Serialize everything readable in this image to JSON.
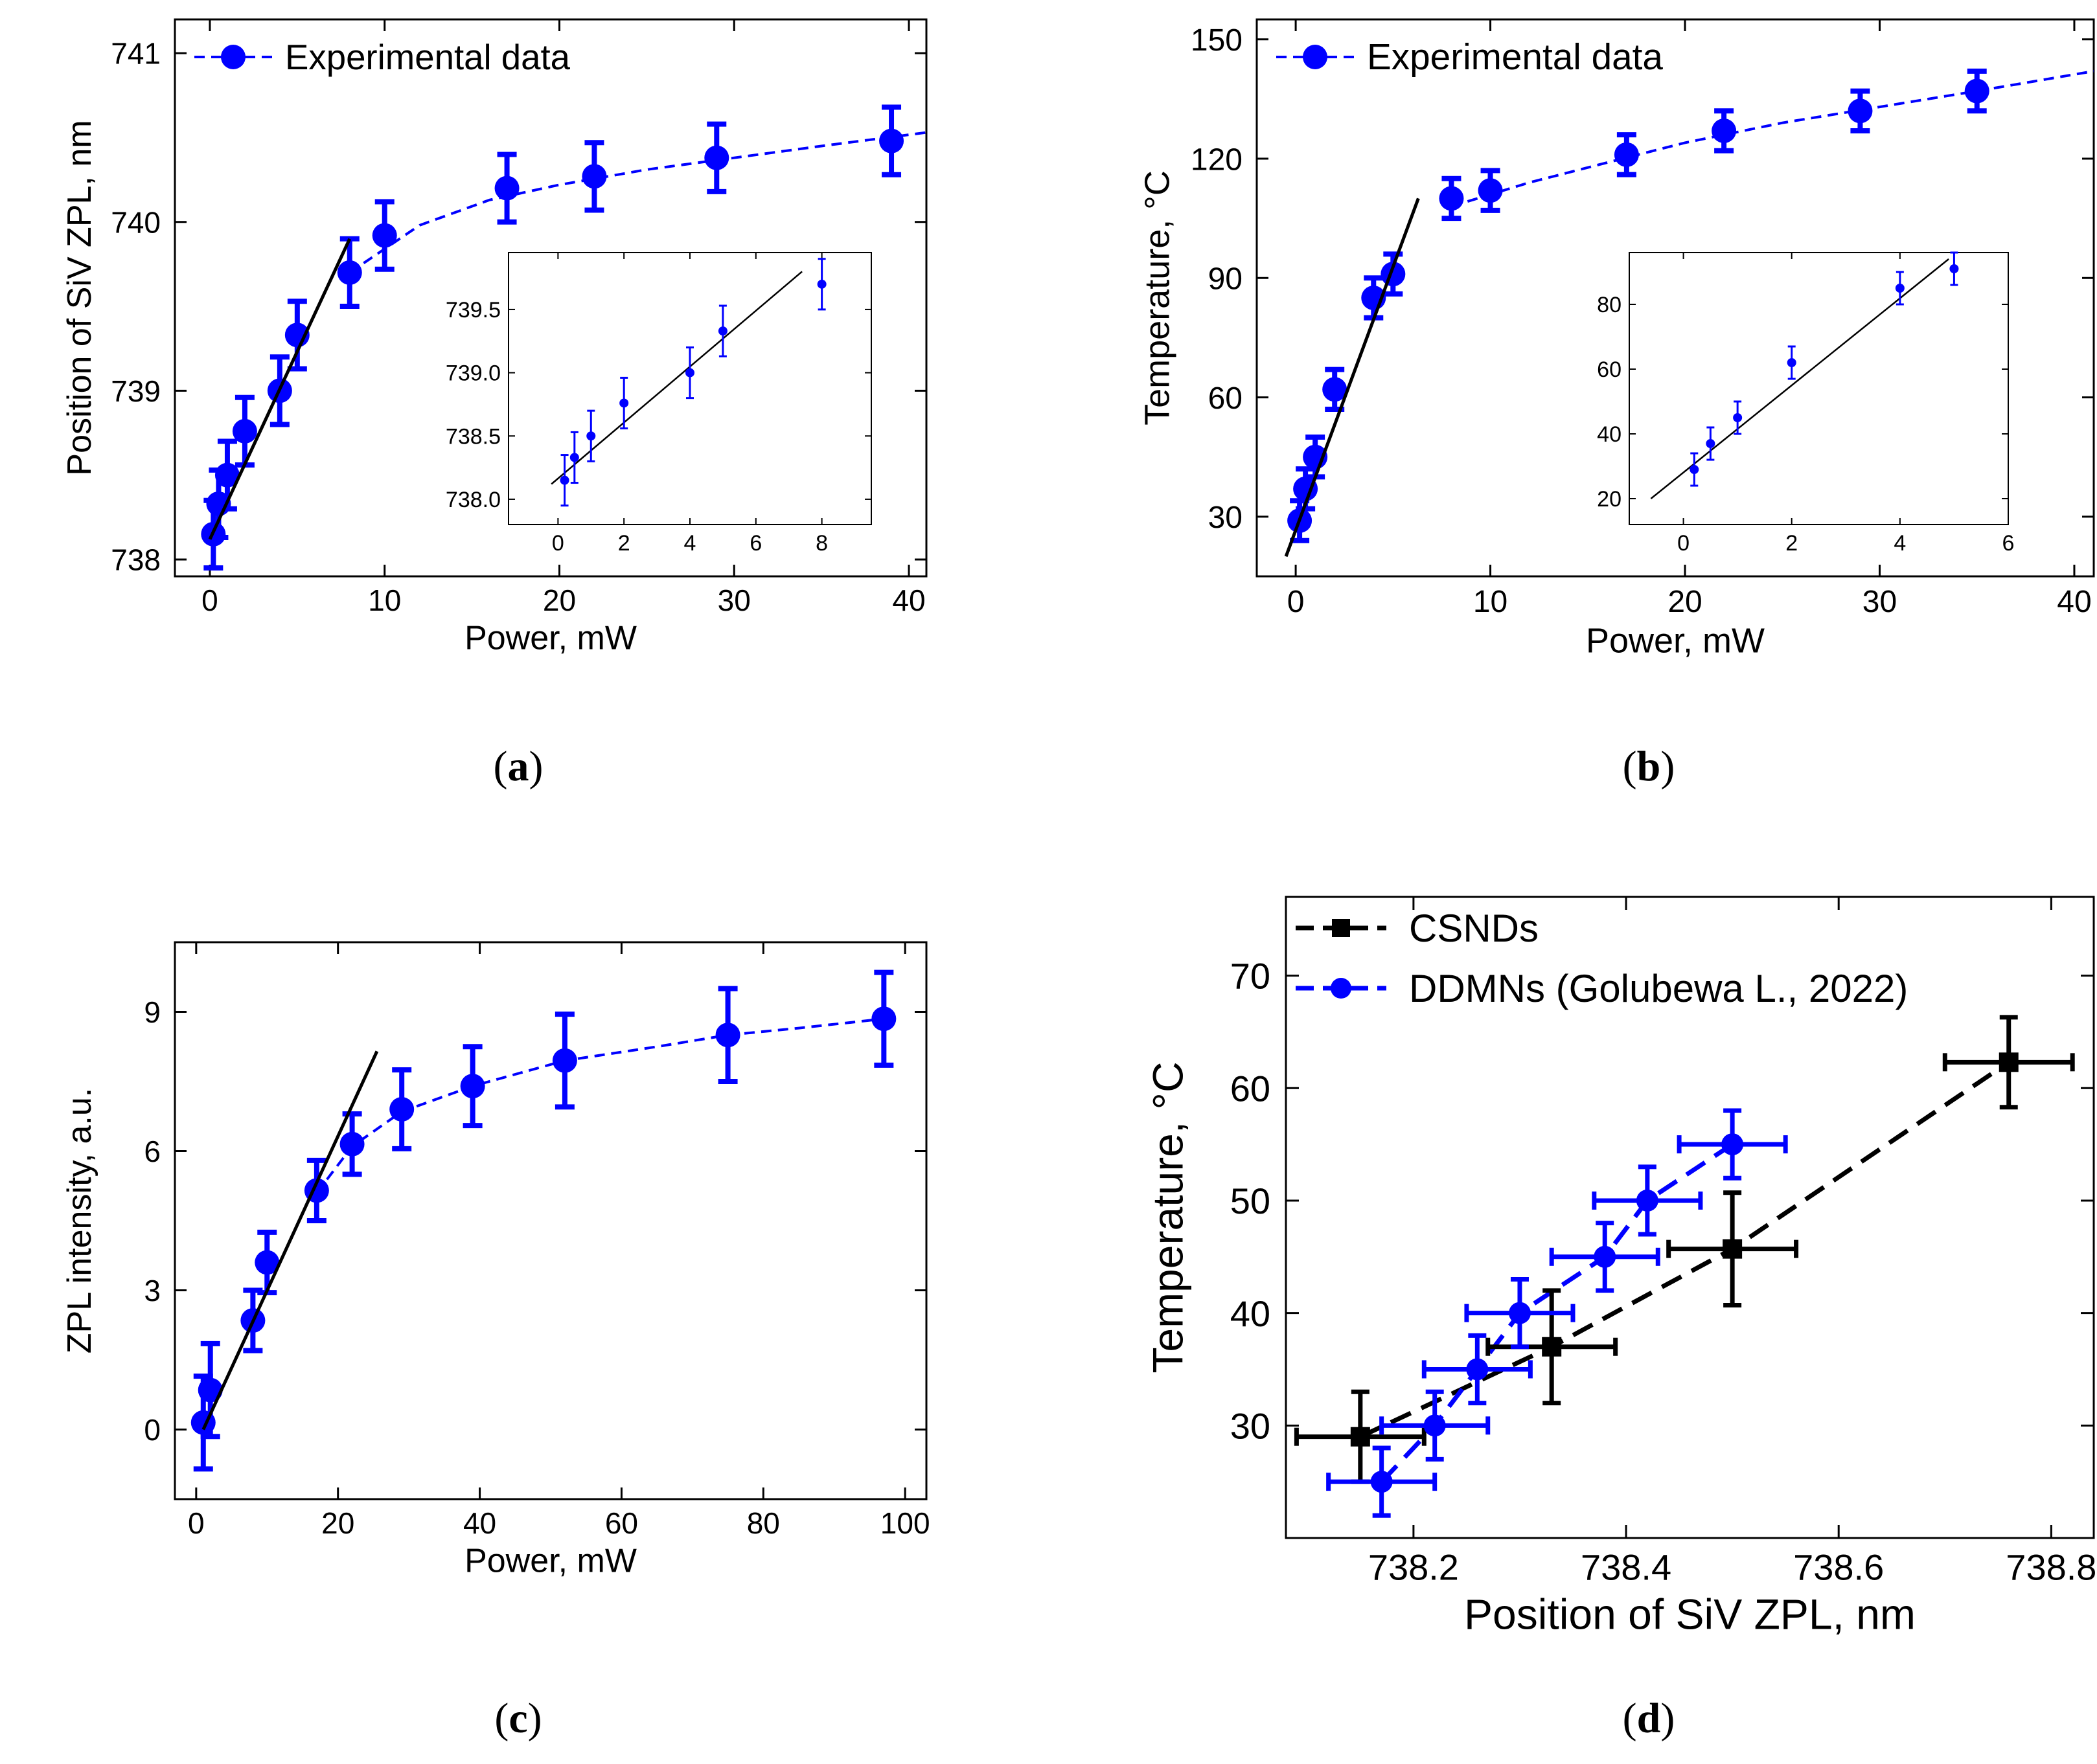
{
  "figure": {
    "panel_labels": [
      "a",
      "b",
      "c",
      "d"
    ]
  },
  "colors": {
    "blue": "#0000ff",
    "black": "#000000"
  },
  "chart_data": [
    {
      "id": "a",
      "type": "scatter",
      "title": "",
      "xlabel": "Power, mW",
      "ylabel": "Position of SiV ZPL, nm",
      "xlim": [
        -2,
        41
      ],
      "ylim": [
        737.9,
        741.2
      ],
      "xticks": [
        0,
        10,
        20,
        30,
        40
      ],
      "yticks": [
        738,
        739,
        740,
        741
      ],
      "legend": {
        "label": "Experimental data",
        "location": "top-left"
      },
      "series": [
        {
          "name": "Experimental data",
          "x": [
            0.2,
            0.5,
            1,
            2,
            4,
            5,
            8,
            10,
            17,
            22,
            29,
            39
          ],
          "y": [
            738.15,
            738.33,
            738.5,
            738.76,
            739.0,
            739.33,
            739.7,
            739.92,
            740.2,
            740.27,
            740.38,
            740.48
          ],
          "yerr": [
            0.2,
            0.2,
            0.2,
            0.2,
            0.2,
            0.2,
            0.2,
            0.2,
            0.2,
            0.2,
            0.2,
            0.2
          ]
        }
      ],
      "fit_solid": {
        "x": [
          0,
          8
        ],
        "y": [
          738.12,
          739.9
        ]
      },
      "fit_dashed": {
        "x": [
          8,
          12,
          16,
          20,
          25,
          30,
          35,
          41
        ],
        "y": [
          739.7,
          739.98,
          740.13,
          740.22,
          740.31,
          740.38,
          740.45,
          740.53
        ]
      },
      "inset": {
        "xlim": [
          -1.5,
          9.5
        ],
        "ylim": [
          737.8,
          739.95
        ],
        "xticks": [
          0,
          2,
          4,
          6,
          8
        ],
        "yticks": [
          738.0,
          738.5,
          739.0,
          739.5
        ],
        "ytick_labels": [
          "738.0",
          "738.5",
          "739.0",
          "739.5"
        ],
        "x": [
          0.2,
          0.5,
          1,
          2,
          4,
          5,
          8
        ],
        "y": [
          738.15,
          738.33,
          738.5,
          738.76,
          739.0,
          739.33,
          739.7
        ],
        "yerr": [
          0.2,
          0.2,
          0.2,
          0.2,
          0.2,
          0.2,
          0.2
        ],
        "fit": {
          "x": [
            -0.2,
            7.4
          ],
          "y": [
            738.12,
            739.8
          ]
        }
      }
    },
    {
      "id": "b",
      "type": "scatter",
      "title": "",
      "xlabel": "Power, mW",
      "ylabel": "Temperature, °C",
      "xlim": [
        -2,
        41
      ],
      "ylim": [
        15,
        155
      ],
      "xticks": [
        0,
        10,
        20,
        30,
        40
      ],
      "yticks": [
        30,
        60,
        90,
        120,
        150
      ],
      "legend": {
        "label": "Experimental data",
        "location": "top-left"
      },
      "series": [
        {
          "name": "Experimental data",
          "x": [
            0.2,
            0.5,
            1,
            2,
            4,
            5,
            8,
            10,
            17,
            22,
            29,
            35
          ],
          "y": [
            29,
            37,
            45,
            62,
            85,
            91,
            110,
            112,
            121,
            127,
            132,
            137
          ],
          "yerr": [
            5,
            5,
            5,
            5,
            5,
            5,
            5,
            5,
            5,
            5,
            5,
            5
          ]
        }
      ],
      "fit_solid": {
        "x": [
          -0.5,
          6.3
        ],
        "y": [
          20,
          110
        ]
      },
      "fit_dashed": {
        "x": [
          8,
          12,
          16,
          20,
          25,
          30,
          35,
          41
        ],
        "y": [
          108,
          114,
          119,
          124,
          129,
          133,
          137,
          142
        ]
      },
      "inset": {
        "xlim": [
          -1,
          6
        ],
        "ylim": [
          12,
          96
        ],
        "xticks": [
          0,
          2,
          4,
          6
        ],
        "yticks": [
          20,
          40,
          60,
          80
        ],
        "ytick_labels": [
          "20",
          "40",
          "60",
          "80"
        ],
        "x": [
          0.2,
          0.5,
          1,
          2,
          4,
          5
        ],
        "y": [
          29,
          37,
          45,
          62,
          85,
          91
        ],
        "yerr": [
          5,
          5,
          5,
          5,
          5,
          5
        ],
        "fit": {
          "x": [
            -0.6,
            4.9
          ],
          "y": [
            20,
            94
          ]
        }
      }
    },
    {
      "id": "c",
      "type": "scatter",
      "title": "",
      "xlabel": "Power, mW",
      "ylabel": "ZPL intensity, a.u.",
      "xlim": [
        -3,
        103
      ],
      "ylim": [
        -1.5,
        10.5
      ],
      "xticks": [
        0,
        20,
        40,
        60,
        80,
        100
      ],
      "yticks": [
        0,
        3,
        6,
        9
      ],
      "series": [
        {
          "name": "ZPL intensity",
          "x": [
            1,
            2,
            8,
            10,
            17,
            22,
            29,
            39,
            52,
            75,
            97
          ],
          "y": [
            0.15,
            0.85,
            2.35,
            3.6,
            5.15,
            6.15,
            6.9,
            7.4,
            7.95,
            8.5,
            8.85
          ],
          "yerr": [
            1,
            1,
            0.65,
            0.65,
            0.65,
            0.65,
            0.85,
            0.85,
            1,
            1,
            1
          ]
        }
      ],
      "fit_solid": {
        "x": [
          1,
          25.5
        ],
        "y": [
          0,
          8.15
        ]
      },
      "fit_dashed": {
        "x": [
          17,
          22,
          29,
          39,
          52,
          65,
          75,
          85,
          97
        ],
        "y": [
          5.1,
          6.1,
          6.85,
          7.4,
          7.95,
          8.25,
          8.5,
          8.65,
          8.85
        ]
      }
    },
    {
      "id": "d",
      "type": "scatter",
      "title": "",
      "xlabel": "Position of SiV ZPL, nm",
      "ylabel": "Temperature, °C",
      "xlim": [
        738.08,
        738.84
      ],
      "ylim": [
        20,
        77
      ],
      "xticks": [
        738.2,
        738.4,
        738.6,
        738.8
      ],
      "xtick_labels": [
        "738.2",
        "738.4",
        "738.6",
        "738.8"
      ],
      "yticks": [
        30,
        40,
        50,
        60,
        70
      ],
      "legend": {
        "location": "top-left"
      },
      "series": [
        {
          "name": "CSNDs",
          "marker": "square",
          "color": "#000000",
          "x": [
            738.15,
            738.33,
            738.5,
            738.76
          ],
          "y": [
            29,
            37,
            45.7,
            62.3
          ],
          "xerr": [
            0.06,
            0.06,
            0.06,
            0.06
          ],
          "yerr": [
            4,
            5,
            5,
            4
          ]
        },
        {
          "name": "DDMNs (Golubewa L., 2022)",
          "marker": "circle",
          "color": "#0000ff",
          "x": [
            738.17,
            738.22,
            738.26,
            738.3,
            738.38,
            738.42,
            738.5
          ],
          "y": [
            25,
            30,
            35,
            40,
            45,
            50,
            55
          ],
          "xerr": [
            0.05,
            0.05,
            0.05,
            0.05,
            0.05,
            0.05,
            0.05
          ],
          "yerr": [
            3,
            3,
            3,
            3,
            3,
            3,
            3
          ]
        }
      ]
    }
  ]
}
